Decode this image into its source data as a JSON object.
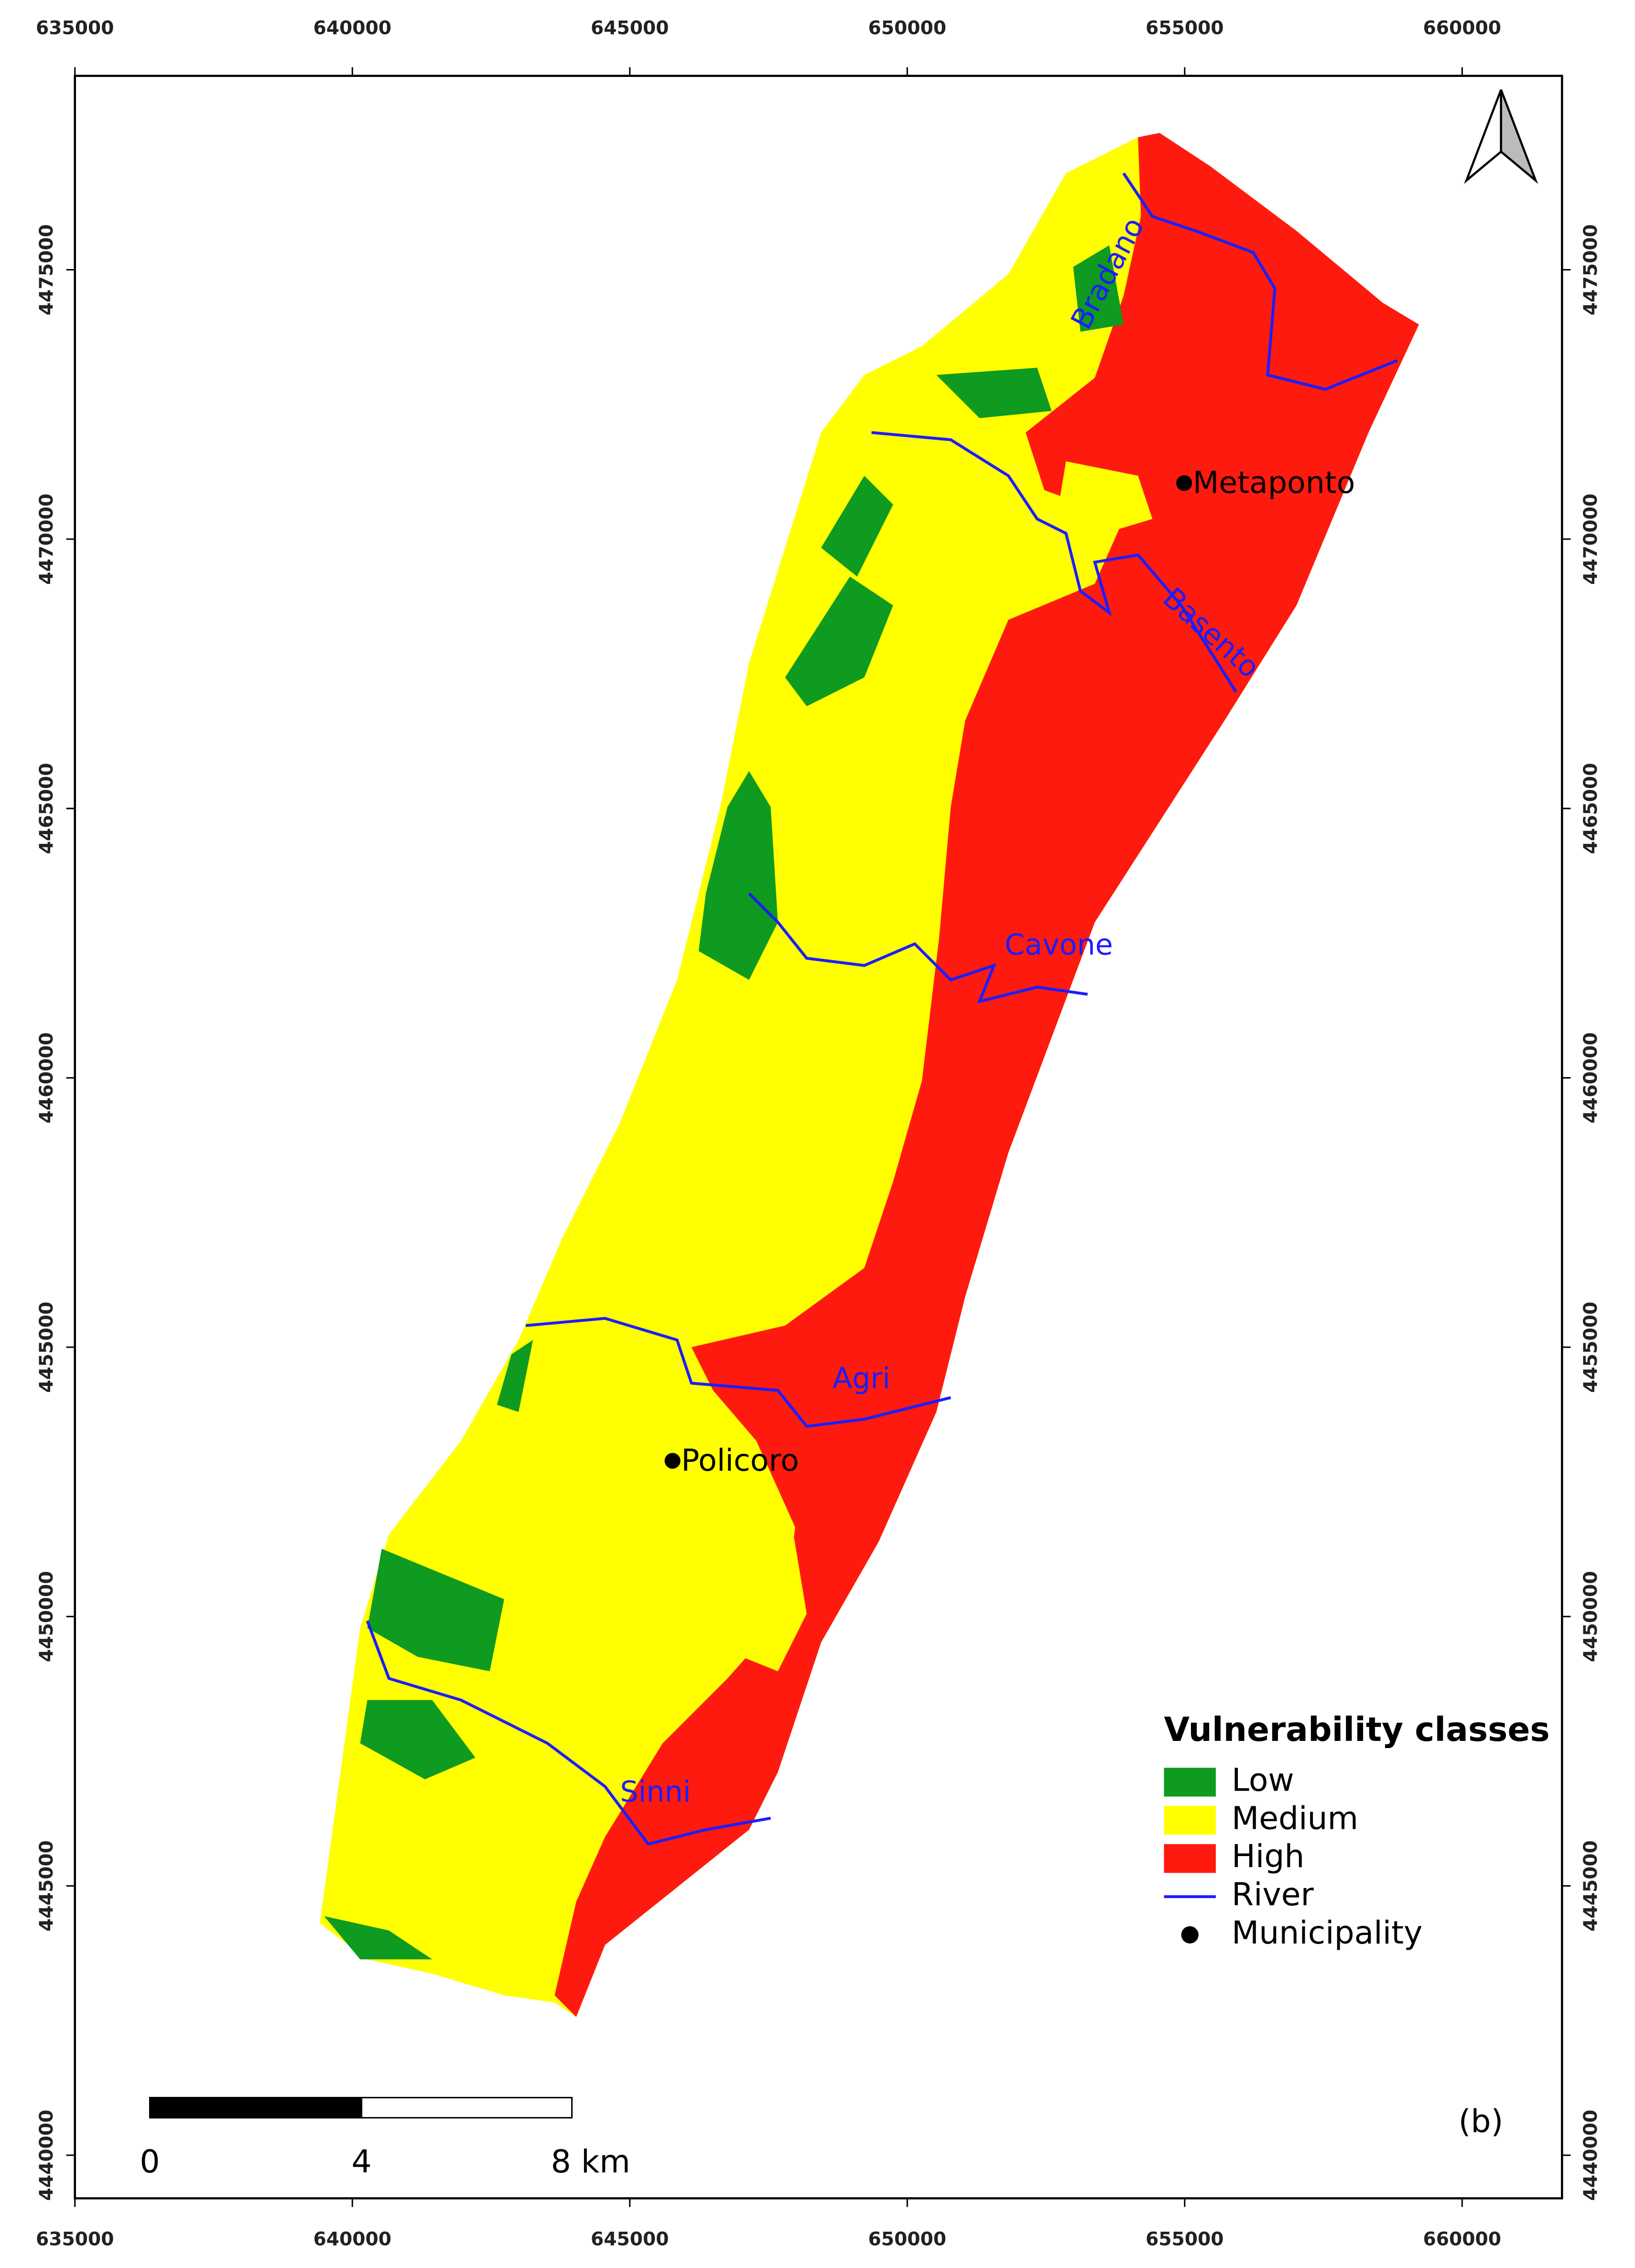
{
  "map": {
    "xticks": [
      635000,
      640000,
      645000,
      650000,
      655000,
      660000
    ],
    "yticks": [
      4440000,
      4445000,
      4450000,
      4455000,
      4460000,
      4465000,
      4470000,
      4475000
    ],
    "xlim": [
      635000,
      661800
    ],
    "ylim": [
      4439200,
      4478600
    ],
    "rivers": [
      "Bradano",
      "Basento",
      "Cavone",
      "Agri",
      "Sinni"
    ],
    "municipalities": [
      {
        "name": "Metaponto",
        "x": 654990,
        "y": 4471040
      },
      {
        "name": "Policoro",
        "x": 645770,
        "y": 4452890
      }
    ],
    "legend": {
      "title": "Vulnerability classes",
      "items": [
        {
          "label": "Low",
          "color": "#0f9a20"
        },
        {
          "label": "Medium",
          "color": "#ffff00"
        },
        {
          "label": "High",
          "color": "#ff1a0f"
        },
        {
          "label": "River",
          "color": "#1d1dff"
        },
        {
          "label": "Municipality",
          "color": "#000000"
        }
      ]
    },
    "scale_bar": {
      "labels": [
        "0",
        "4",
        "8 km"
      ]
    },
    "panel_label": "(b)"
  }
}
